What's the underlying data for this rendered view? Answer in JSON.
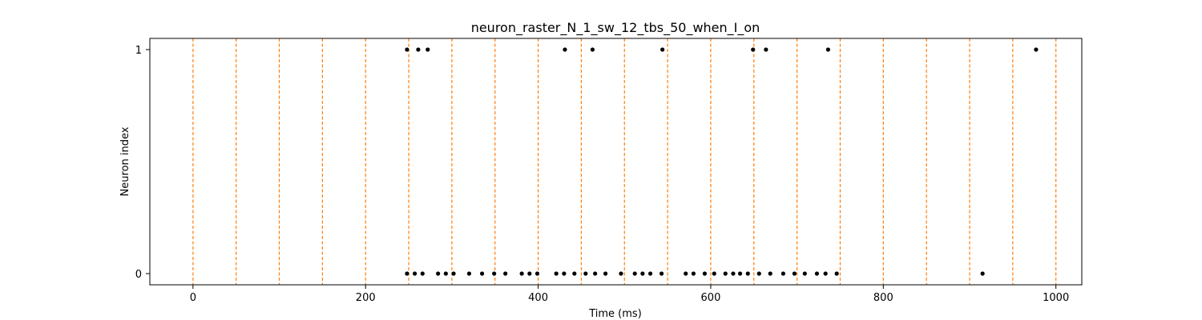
{
  "chart_data": {
    "type": "scatter",
    "title": "neuron_raster_N_1_sw_12_tbs_50_when_I_on",
    "xlabel": "Time (ms)",
    "ylabel": "Neuron index",
    "xlim": [
      -50,
      1030
    ],
    "ylim": [
      -0.05,
      1.05
    ],
    "x_ticks": [
      0,
      200,
      400,
      600,
      800,
      1000
    ],
    "x_tick_labels": [
      "0",
      "200",
      "400",
      "600",
      "800",
      "1000"
    ],
    "y_ticks": [
      0,
      1
    ],
    "y_tick_labels": [
      "0",
      "1"
    ],
    "grid": false,
    "marker_color": "#000000",
    "vline_color": "#ff7f0e",
    "vlines": [
      0,
      50,
      100,
      150,
      200,
      250,
      300,
      350,
      400,
      450,
      500,
      550,
      600,
      650,
      700,
      750,
      800,
      850,
      900,
      950,
      1000
    ],
    "series": [
      {
        "neuron": 1,
        "x": [
          248,
          261,
          272,
          431,
          463,
          544,
          649,
          664,
          736,
          977
        ]
      },
      {
        "neuron": 0,
        "x": [
          248,
          257,
          266,
          284,
          293,
          302,
          320,
          335,
          349,
          362,
          381,
          390,
          399,
          421,
          430,
          442,
          455,
          466,
          478,
          496,
          512,
          521,
          530,
          543,
          571,
          580,
          593,
          604,
          617,
          626,
          634,
          643,
          656,
          669,
          684,
          697,
          709,
          723,
          733,
          746,
          915
        ]
      }
    ]
  }
}
